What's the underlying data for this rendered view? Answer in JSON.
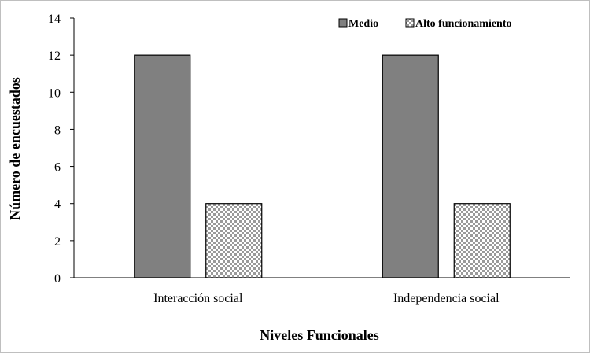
{
  "chart_data": {
    "type": "bar",
    "title": "",
    "xlabel": "Niveles Funcionales",
    "ylabel": "Número de encuestados",
    "categories": [
      "Interacción social",
      "Independencia social"
    ],
    "series": [
      {
        "name": "Medio",
        "values": [
          12,
          12
        ],
        "color": "#808080",
        "pattern": "solid"
      },
      {
        "name": "Alto funcionamiento",
        "values": [
          4,
          4
        ],
        "color": "#ffffff",
        "pattern": "dotted-grid"
      }
    ],
    "ylim": [
      0,
      14
    ],
    "yticks": [
      0,
      2,
      4,
      6,
      8,
      10,
      12,
      14
    ],
    "grid": false,
    "legend_position": "top-right"
  }
}
